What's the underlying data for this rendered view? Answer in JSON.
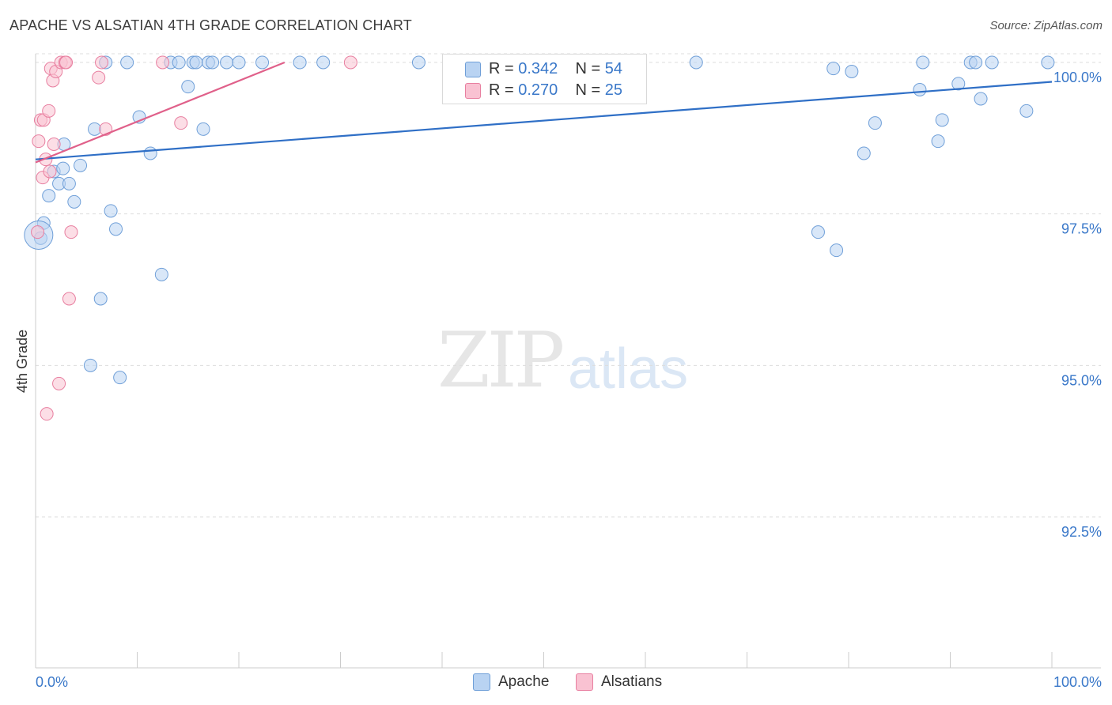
{
  "title": "APACHE VS ALSATIAN 4TH GRADE CORRELATION CHART",
  "source": "Source: ZipAtlas.com",
  "watermark": {
    "zip": "ZIP",
    "atlas": "atlas"
  },
  "legend": {
    "r_label": "R =",
    "n_label": "N =",
    "apache": {
      "r": "0.342",
      "n": "54"
    },
    "alsatians": {
      "r": "0.270",
      "n": "25"
    }
  },
  "chart_data": {
    "type": "scatter",
    "title": "APACHE VS ALSATIAN 4TH GRADE CORRELATION CHART",
    "xlabel": "",
    "ylabel": "4th Grade",
    "xlim": [
      0,
      100
    ],
    "ylim": [
      90.0,
      100.3
    ],
    "x_tick_labels": [
      "0.0%",
      "100.0%"
    ],
    "y_ticks": [
      92.5,
      95.0,
      97.5,
      100.0
    ],
    "y_tick_labels": [
      "92.5%",
      "95.0%",
      "97.5%",
      "100.0%"
    ],
    "grid": true,
    "legend_position": "top-center",
    "colors": {
      "apache_fill": "#b9d3f2",
      "apache_stroke": "#6f9fd8",
      "apache_line": "#2f6fc6",
      "alsatians_fill": "#f9c2d2",
      "alsatians_stroke": "#e87fa0",
      "alsatians_line": "#e0608a",
      "tick_label": "#3a78c9"
    },
    "series": [
      {
        "name": "Apache",
        "points": [
          {
            "x": 0.5,
            "y": 97.1
          },
          {
            "x": 0.8,
            "y": 97.35
          },
          {
            "x": 1.3,
            "y": 97.8
          },
          {
            "x": 1.8,
            "y": 98.2
          },
          {
            "x": 2.3,
            "y": 98.0
          },
          {
            "x": 2.7,
            "y": 98.25
          },
          {
            "x": 2.8,
            "y": 98.65
          },
          {
            "x": 3.3,
            "y": 98.0
          },
          {
            "x": 3.8,
            "y": 97.7
          },
          {
            "x": 4.4,
            "y": 98.3
          },
          {
            "x": 5.4,
            "y": 95.0
          },
          {
            "x": 5.8,
            "y": 98.9
          },
          {
            "x": 6.4,
            "y": 96.1
          },
          {
            "x": 6.9,
            "y": 100.0
          },
          {
            "x": 7.4,
            "y": 97.55
          },
          {
            "x": 7.9,
            "y": 97.25
          },
          {
            "x": 8.3,
            "y": 94.8
          },
          {
            "x": 9.0,
            "y": 100.0
          },
          {
            "x": 10.2,
            "y": 99.1
          },
          {
            "x": 11.3,
            "y": 98.5
          },
          {
            "x": 12.4,
            "y": 96.5
          },
          {
            "x": 13.3,
            "y": 100.0
          },
          {
            "x": 14.1,
            "y": 100.0
          },
          {
            "x": 15.0,
            "y": 99.6
          },
          {
            "x": 15.5,
            "y": 100.0
          },
          {
            "x": 15.8,
            "y": 100.0
          },
          {
            "x": 16.5,
            "y": 98.9
          },
          {
            "x": 17.0,
            "y": 100.0
          },
          {
            "x": 17.4,
            "y": 100.0
          },
          {
            "x": 18.8,
            "y": 100.0
          },
          {
            "x": 20.0,
            "y": 100.0
          },
          {
            "x": 22.3,
            "y": 100.0
          },
          {
            "x": 26.0,
            "y": 100.0
          },
          {
            "x": 28.3,
            "y": 100.0
          },
          {
            "x": 37.7,
            "y": 100.0
          },
          {
            "x": 65.0,
            "y": 100.0
          },
          {
            "x": 77.0,
            "y": 97.2
          },
          {
            "x": 78.5,
            "y": 99.9
          },
          {
            "x": 78.8,
            "y": 96.9
          },
          {
            "x": 80.3,
            "y": 99.85
          },
          {
            "x": 81.5,
            "y": 98.5
          },
          {
            "x": 82.6,
            "y": 99.0
          },
          {
            "x": 87.0,
            "y": 99.55
          },
          {
            "x": 87.3,
            "y": 100.0
          },
          {
            "x": 88.8,
            "y": 98.7
          },
          {
            "x": 89.2,
            "y": 99.05
          },
          {
            "x": 90.8,
            "y": 99.65
          },
          {
            "x": 92.0,
            "y": 100.0
          },
          {
            "x": 92.5,
            "y": 100.0
          },
          {
            "x": 93.0,
            "y": 99.4
          },
          {
            "x": 94.1,
            "y": 100.0
          },
          {
            "x": 97.5,
            "y": 99.2
          },
          {
            "x": 99.6,
            "y": 100.0
          },
          {
            "x": 0.3,
            "y": 97.15
          }
        ],
        "trend": {
          "x": [
            0,
            100
          ],
          "y": [
            98.4,
            99.68
          ]
        }
      },
      {
        "name": "Alsatians",
        "points": [
          {
            "x": 0.2,
            "y": 97.2
          },
          {
            "x": 0.3,
            "y": 98.7
          },
          {
            "x": 0.5,
            "y": 99.05
          },
          {
            "x": 0.7,
            "y": 98.1
          },
          {
            "x": 0.8,
            "y": 99.05
          },
          {
            "x": 1.0,
            "y": 98.4
          },
          {
            "x": 1.1,
            "y": 94.2
          },
          {
            "x": 1.3,
            "y": 99.2
          },
          {
            "x": 1.4,
            "y": 98.2
          },
          {
            "x": 1.5,
            "y": 99.9
          },
          {
            "x": 1.7,
            "y": 99.7
          },
          {
            "x": 1.8,
            "y": 98.65
          },
          {
            "x": 2.0,
            "y": 99.85
          },
          {
            "x": 2.3,
            "y": 94.7
          },
          {
            "x": 2.5,
            "y": 100.0
          },
          {
            "x": 2.9,
            "y": 100.0
          },
          {
            "x": 3.0,
            "y": 100.0
          },
          {
            "x": 3.3,
            "y": 96.1
          },
          {
            "x": 3.5,
            "y": 97.2
          },
          {
            "x": 6.2,
            "y": 99.75
          },
          {
            "x": 6.5,
            "y": 100.0
          },
          {
            "x": 6.9,
            "y": 98.9
          },
          {
            "x": 12.5,
            "y": 100.0
          },
          {
            "x": 14.3,
            "y": 99.0
          },
          {
            "x": 31.0,
            "y": 100.0
          }
        ],
        "trend": {
          "x": [
            0,
            24.5
          ],
          "y": [
            98.35,
            100.0
          ]
        }
      }
    ]
  }
}
